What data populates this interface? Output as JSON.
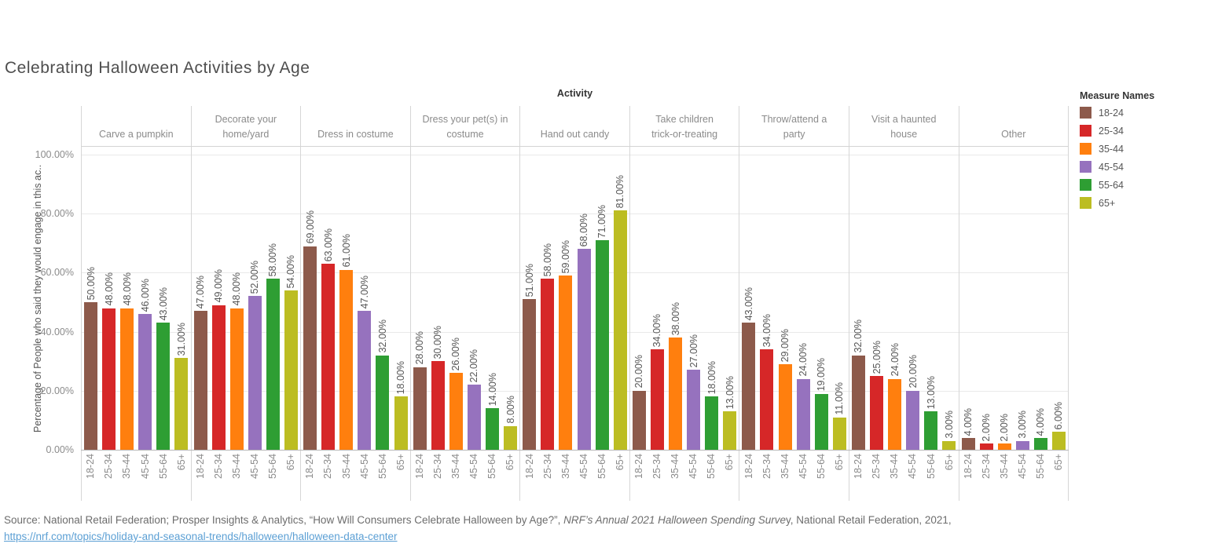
{
  "source": {
    "prefix": "Source: National Retail Federation; Prosper Insights & Analytics, “How Will Consumers Celebrate Halloween by Age?”, ",
    "italic": "NRF’s Annual 2021 Halloween Spending Surve",
    "suffix": "y, National Retail Federation, 2021,",
    "link": "https://nrf.com/topics/holiday-and-seasonal-trends/halloween/halloween-data-center"
  },
  "chart_data": {
    "type": "bar",
    "title": "Celebrating Halloween Activities by Age",
    "column_field": "Activity",
    "legend_title": "Measure Names",
    "ylabel": "Percentage of People who said they would engage in this ac..",
    "ylim": [
      0,
      100
    ],
    "ytick_step": 20,
    "ytick_labels_top_down": [
      "100.00%",
      "80.00%",
      "60.00%",
      "40.00%",
      "20.00%",
      "0.00%"
    ],
    "grid": true,
    "legend_position": "right",
    "value_label_format": "0.00%",
    "categories": [
      {
        "name": "Carve a pumpkin",
        "label_lines": [
          "Carve a pumpkin"
        ]
      },
      {
        "name": "Decorate your home/yard",
        "label_lines": [
          "Decorate your",
          "home/yard"
        ]
      },
      {
        "name": "Dress in costume",
        "label_lines": [
          "Dress in costume"
        ]
      },
      {
        "name": "Dress your pet(s) in costume",
        "label_lines": [
          "Dress your pet(s) in",
          "costume"
        ]
      },
      {
        "name": "Hand out candy",
        "label_lines": [
          "Hand out candy"
        ]
      },
      {
        "name": "Take children trick-or-treating",
        "label_lines": [
          "Take children",
          "trick-or-treating"
        ]
      },
      {
        "name": "Throw/attend a party",
        "label_lines": [
          "Throw/attend a",
          "party"
        ]
      },
      {
        "name": "Visit a haunted house",
        "label_lines": [
          "Visit a haunted",
          "house"
        ]
      },
      {
        "name": "Other",
        "label_lines": [
          "Other"
        ]
      }
    ],
    "series": [
      {
        "name": "18-24",
        "color": "#8d5a4b",
        "values": [
          50,
          47,
          69,
          28,
          51,
          20,
          43,
          32,
          4
        ]
      },
      {
        "name": "25-34",
        "color": "#d62728",
        "values": [
          48,
          49,
          63,
          30,
          58,
          34,
          34,
          25,
          2
        ]
      },
      {
        "name": "35-44",
        "color": "#ff7f0e",
        "values": [
          48,
          48,
          61,
          26,
          59,
          38,
          29,
          24,
          2
        ]
      },
      {
        "name": "45-54",
        "color": "#9672be",
        "values": [
          46,
          52,
          47,
          22,
          68,
          27,
          24,
          20,
          3
        ]
      },
      {
        "name": "55-64",
        "color": "#2e9e33",
        "values": [
          43,
          58,
          32,
          14,
          71,
          18,
          19,
          13,
          4
        ]
      },
      {
        "name": "65+",
        "color": "#bcbd22",
        "values": [
          31,
          54,
          18,
          8,
          81,
          13,
          11,
          3,
          6
        ]
      }
    ]
  }
}
